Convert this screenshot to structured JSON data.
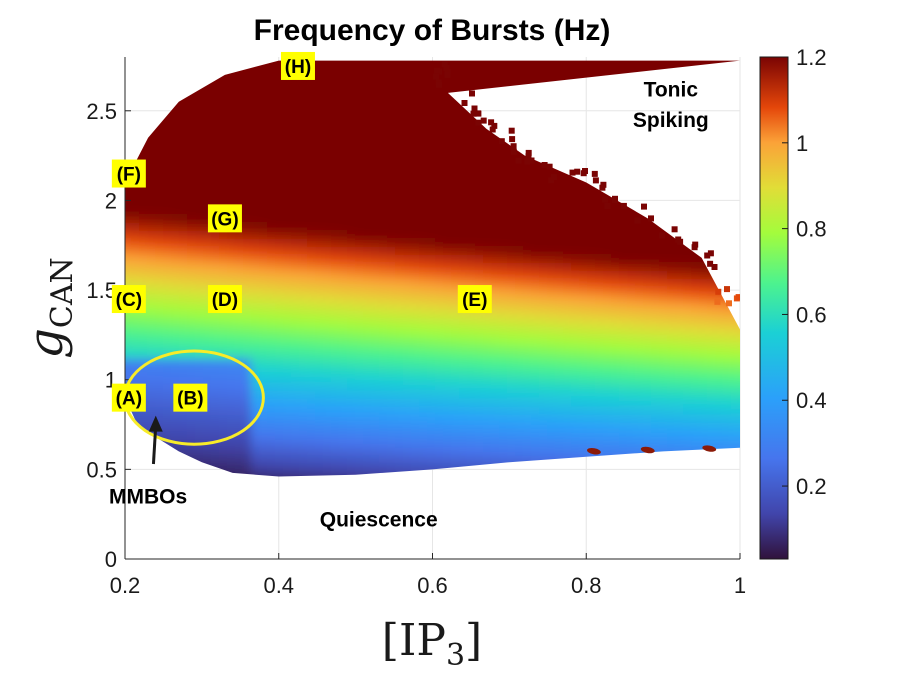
{
  "chart_data": {
    "type": "heatmap",
    "title": "Frequency of Bursts (Hz)",
    "xlabel": "[IP3]",
    "ylabel": "gCAN",
    "xlabel_main": "[IP",
    "xlabel_sub": "3",
    "xlabel_close": "]",
    "ylabel_main": "g",
    "ylabel_sub": "CAN",
    "xlim": [
      0.2,
      1.0
    ],
    "ylim": [
      0,
      2.8
    ],
    "xticks": [
      0.2,
      0.4,
      0.6,
      0.8,
      1.0
    ],
    "xtick_labels": [
      "0.2",
      "0.4",
      "0.6",
      "0.8",
      "1"
    ],
    "yticks": [
      0,
      0.5,
      1,
      1.5,
      2,
      2.5
    ],
    "ytick_labels": [
      "0",
      "0.5",
      "1",
      "1.5",
      "2",
      "2.5"
    ],
    "grid": true,
    "colorbar": {
      "min": 0.03,
      "max": 1.2,
      "ticks": [
        0.2,
        0.4,
        0.6,
        0.8,
        1.0,
        1.2
      ],
      "tick_labels": [
        "0.2",
        "0.4",
        "0.6",
        "0.8",
        "1",
        "1.2"
      ],
      "colormap": "turbo"
    },
    "region_labels": [
      {
        "text": "Tonic",
        "x": 0.91,
        "y": 2.62
      },
      {
        "text": "Spiking",
        "x": 0.91,
        "y": 2.45
      },
      {
        "text": "Quiescence",
        "x": 0.53,
        "y": 0.22
      },
      {
        "text": "MMBOs",
        "x": 0.23,
        "y": 0.35
      }
    ],
    "labeled_points": [
      {
        "label": "(A)",
        "x": 0.205,
        "y": 0.9
      },
      {
        "label": "(B)",
        "x": 0.285,
        "y": 0.9
      },
      {
        "label": "(C)",
        "x": 0.205,
        "y": 1.45
      },
      {
        "label": "(D)",
        "x": 0.33,
        "y": 1.45
      },
      {
        "label": "(E)",
        "x": 0.655,
        "y": 1.45
      },
      {
        "label": "(F)",
        "x": 0.205,
        "y": 2.15
      },
      {
        "label": "(G)",
        "x": 0.33,
        "y": 1.9
      },
      {
        "label": "(H)",
        "x": 0.425,
        "y": 2.75
      }
    ],
    "mmbo_ellipse": {
      "cx": 0.29,
      "cy": 0.9,
      "rx": 0.09,
      "ry": 0.26
    },
    "arrow": {
      "from": [
        0.237,
        0.53
      ],
      "to": [
        0.24,
        0.8
      ]
    },
    "region_boundary": {
      "upper": [
        [
          0.2,
          2.1
        ],
        [
          0.23,
          2.35
        ],
        [
          0.27,
          2.55
        ],
        [
          0.33,
          2.7
        ],
        [
          0.4,
          2.78
        ],
        [
          1.0,
          2.78
        ]
      ],
      "right_tonic": [
        [
          0.59,
          2.78
        ],
        [
          0.62,
          2.6
        ],
        [
          0.67,
          2.4
        ],
        [
          0.72,
          2.25
        ],
        [
          0.8,
          2.1
        ],
        [
          0.88,
          1.9
        ],
        [
          0.95,
          1.68
        ],
        [
          1.0,
          1.28
        ]
      ],
      "lower": [
        [
          0.2,
          0.9
        ],
        [
          0.215,
          0.76
        ],
        [
          0.24,
          0.68
        ],
        [
          0.27,
          0.6
        ],
        [
          0.3,
          0.54
        ],
        [
          0.34,
          0.48
        ],
        [
          0.4,
          0.46
        ],
        [
          0.5,
          0.47
        ],
        [
          0.6,
          0.5
        ],
        [
          0.7,
          0.54
        ],
        [
          0.8,
          0.57
        ],
        [
          0.9,
          0.6
        ],
        [
          1.0,
          0.62
        ]
      ]
    }
  }
}
